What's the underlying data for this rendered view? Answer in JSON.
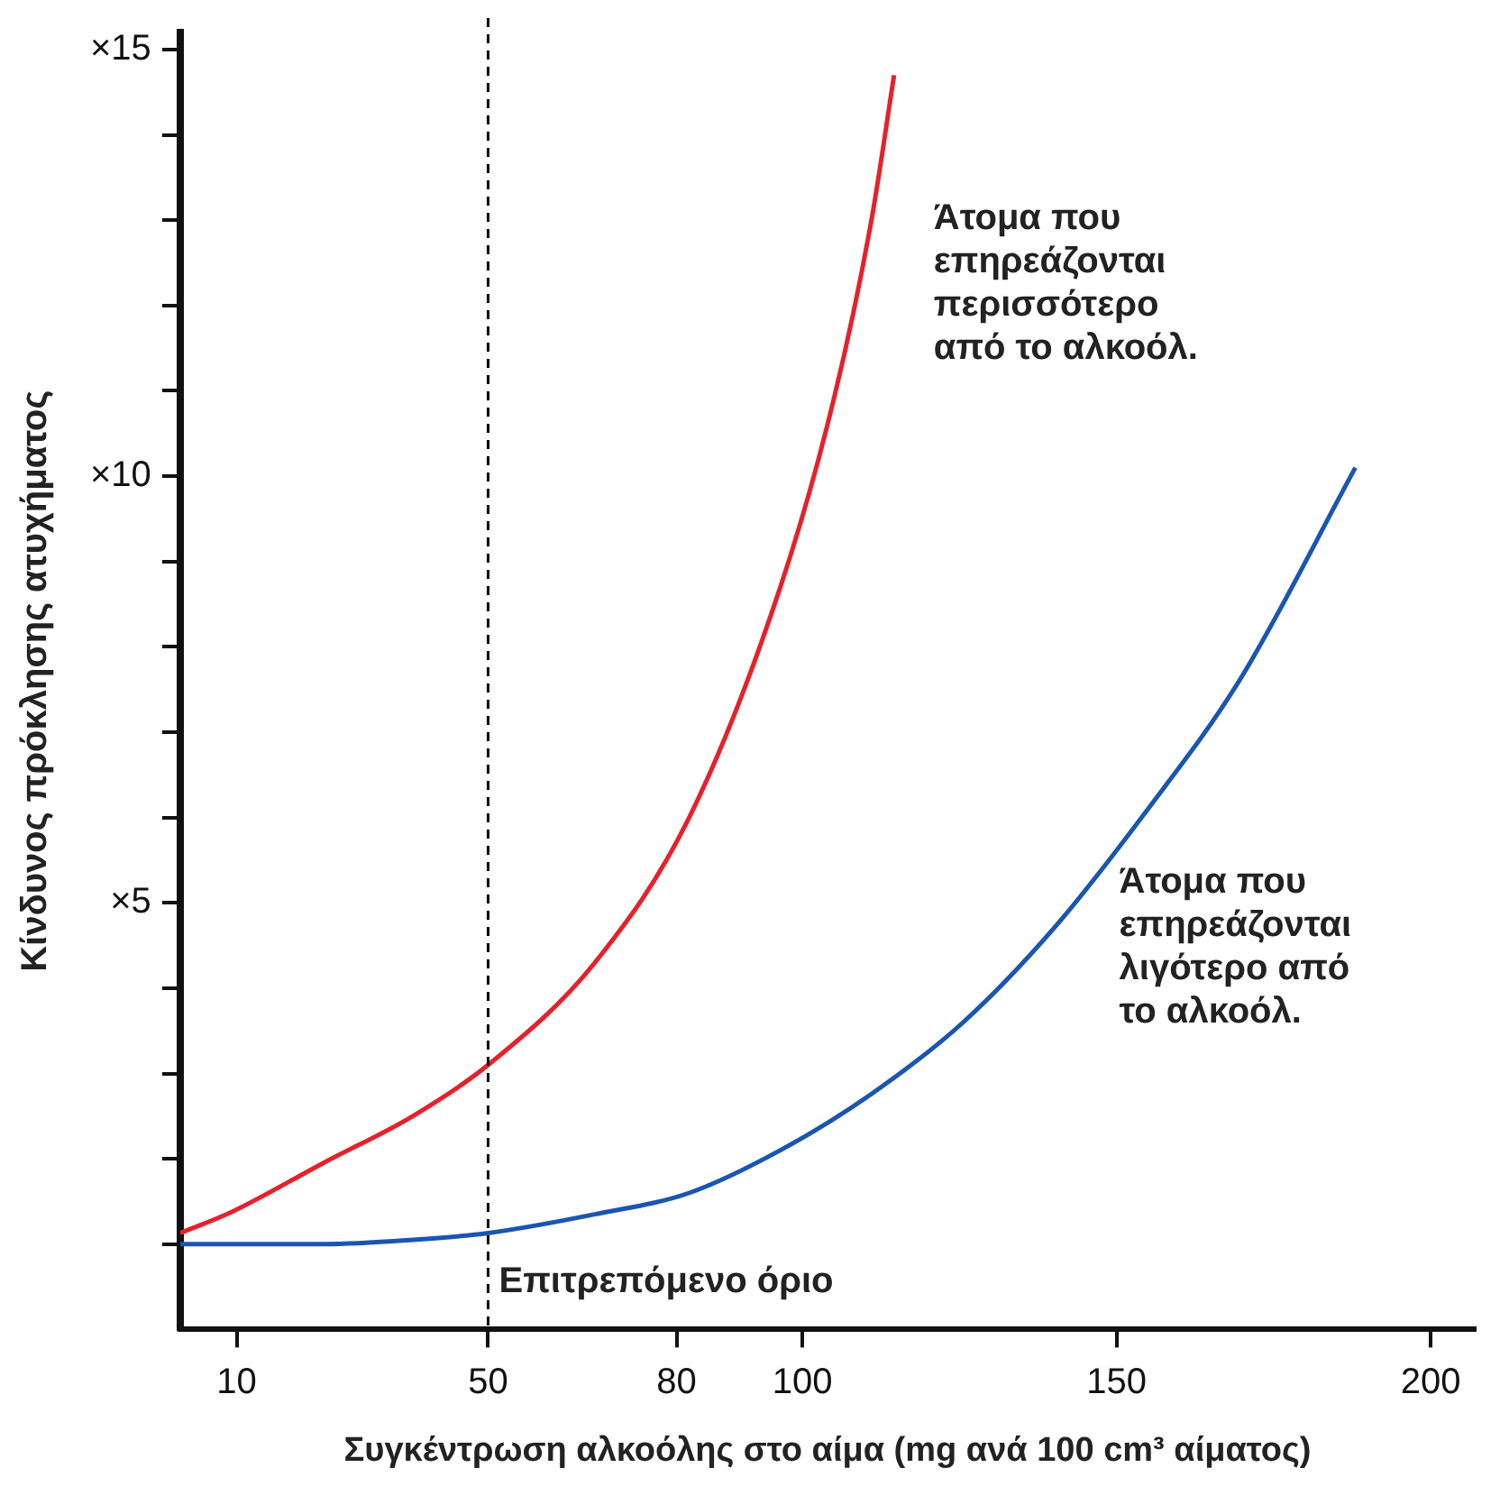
{
  "chart_data": {
    "type": "line",
    "xlabel": "Συγκέντρωση αλκοόλης στο αίμα (mg ανά 100 cm³ αίματος)",
    "ylabel": "Κίνδυνος πρόκλησης ατυχήματος",
    "xlim": [
      1,
      207
    ],
    "xticks": [
      10,
      50,
      80,
      100,
      150,
      200
    ],
    "ylim": [
      0,
      15.2
    ],
    "yticks": [
      {
        "value": 1,
        "label": null
      },
      {
        "value": 2,
        "label": null
      },
      {
        "value": 3,
        "label": null
      },
      {
        "value": 4,
        "label": null
      },
      {
        "value": 5,
        "label": "×5"
      },
      {
        "value": 6,
        "label": null
      },
      {
        "value": 7,
        "label": null
      },
      {
        "value": 8,
        "label": null
      },
      {
        "value": 9,
        "label": null
      },
      {
        "value": 10,
        "label": "×10"
      },
      {
        "value": 11,
        "label": null
      },
      {
        "value": 12,
        "label": null
      },
      {
        "value": 13,
        "label": null
      },
      {
        "value": 14,
        "label": null
      },
      {
        "value": 15,
        "label": "×15"
      }
    ],
    "series": [
      {
        "name": "Άτομα που\nεπηρεάζονται\nπερισσότερο\nαπό το αλκοόλ.",
        "color": "#e8202a",
        "x": [
          1,
          9,
          24,
          38,
          50,
          67,
          82,
          96.5,
          105,
          111,
          114.6
        ],
        "values": [
          1.13,
          1.37,
          1.96,
          2.5,
          3.1,
          4.3,
          6.0,
          8.7,
          10.9,
          13.0,
          14.7
        ]
      },
      {
        "name": "Άτομα που\nεπηρεάζονται\nλιγότερο από\nτο αλκοόλ.",
        "color": "#1a56b0",
        "x": [
          1,
          24,
          38,
          50,
          67,
          82,
          96.5,
          111,
          125.6,
          140,
          155,
          169.5,
          188
        ],
        "values": [
          1.0,
          1.0,
          1.05,
          1.13,
          1.35,
          1.6,
          2.1,
          2.76,
          3.6,
          4.7,
          6.1,
          7.6,
          10.1
        ]
      }
    ],
    "ref_lines": [
      {
        "axis": "x",
        "value": 50,
        "label": "Επιτρεπόμενο όριο",
        "color": "#000000",
        "line_style": "dashed"
      }
    ],
    "grid": false,
    "legend": false,
    "marker": "none",
    "line_style": "solid"
  }
}
